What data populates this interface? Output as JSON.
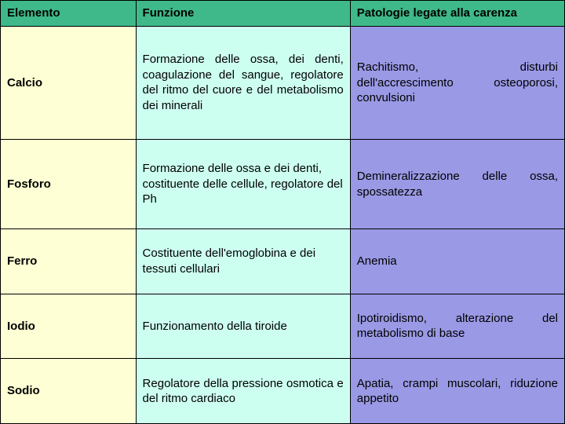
{
  "header": {
    "elemento": "Elemento",
    "funzione": "Funzione",
    "patologie": "Patologie legate alla carenza"
  },
  "rows": [
    {
      "elemento": "Calcio",
      "funzione": "Formazione delle ossa, dei denti, coagulazione del sangue, regolatore del ritmo del cuore e del metabolismo dei minerali",
      "patologie": "Rachitismo, disturbi dell'accrescimento osteoporosi, convulsioni"
    },
    {
      "elemento": "Fosforo",
      "funzione": "Formazione delle ossa e dei denti, costituente delle cellule, regolatore del Ph",
      "patologie": "Demineralizzazione delle ossa, spossatezza"
    },
    {
      "elemento": "Ferro",
      "funzione": "Costituente dell'emoglobina e dei tessuti cellulari",
      "patologie": "Anemia"
    },
    {
      "elemento": "Iodio",
      "funzione": "Funzionamento della tiroide",
      "patologie": "Ipotiroidismo, alterazione del metabolismo di base"
    },
    {
      "elemento": "Sodio",
      "funzione": "Regolatore della pressione osmotica e del ritmo cardiaco",
      "patologie": "Apatia, crampi muscolari, riduzione appetito"
    }
  ],
  "colors": {
    "header_bg": "#3fb989",
    "col1_bg": "#feffd4",
    "col2_bg": "#cdfff1",
    "col3_bg": "#9a99e5",
    "border": "#000000"
  }
}
